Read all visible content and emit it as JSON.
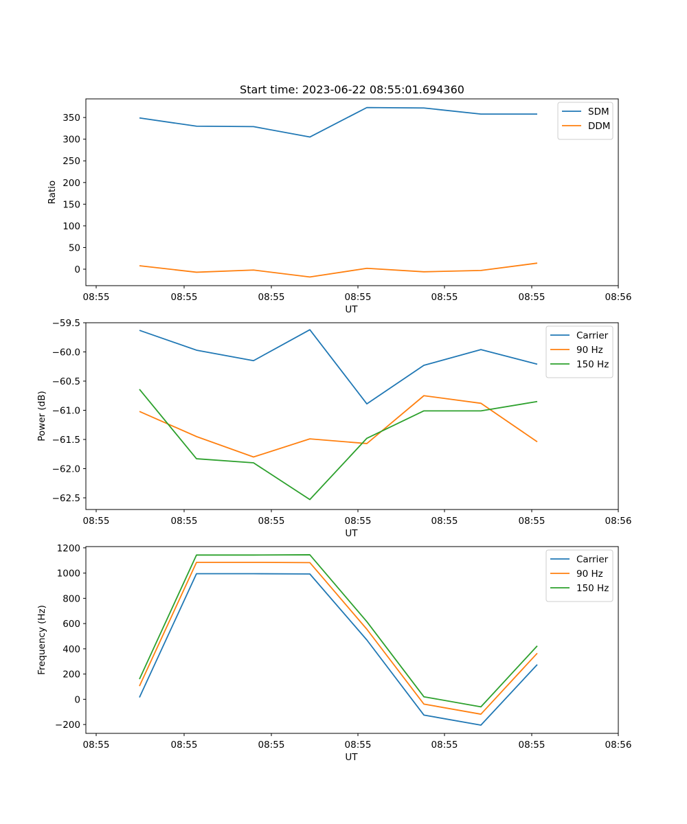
{
  "chart_data": [
    {
      "type": "line",
      "title": "Start time: 2023-06-22 08:55:01.694360",
      "xlabel": "UT",
      "ylabel": "Ratio",
      "x_tick_labels": [
        "08:55",
        "08:55",
        "08:55",
        "08:55",
        "08:55",
        "08:55",
        "08:56"
      ],
      "y_ticks": [
        0,
        50,
        100,
        150,
        200,
        250,
        300,
        350
      ],
      "y_tick_labels": [
        "0",
        "50",
        "100",
        "150",
        "200",
        "250",
        "300",
        "350"
      ],
      "ylim": [
        -38,
        393
      ],
      "legend": "top-right",
      "grid": false,
      "series": [
        {
          "name": "SDM",
          "color": "#1f77b4",
          "values": [
            349,
            330,
            329,
            305,
            373,
            372,
            358,
            358
          ]
        },
        {
          "name": "DDM",
          "color": "#ff7f0e",
          "values": [
            8,
            -7,
            -2,
            -18,
            2,
            -6,
            -3,
            14
          ]
        }
      ]
    },
    {
      "type": "line",
      "title": "",
      "xlabel": "UT",
      "ylabel": "Power (dB)",
      "x_tick_labels": [
        "08:55",
        "08:55",
        "08:55",
        "08:55",
        "08:55",
        "08:55",
        "08:56"
      ],
      "y_ticks": [
        -62.5,
        -62.0,
        -61.5,
        -61.0,
        -60.5,
        -60.0,
        -59.5
      ],
      "y_tick_labels": [
        "−62.5",
        "−62.0",
        "−61.5",
        "−61.0",
        "−60.5",
        "−60.0",
        "−59.5"
      ],
      "ylim": [
        -62.7,
        -59.5
      ],
      "legend": "top-right",
      "grid": false,
      "series": [
        {
          "name": "Carrier",
          "color": "#1f77b4",
          "values": [
            -59.63,
            -59.97,
            -60.15,
            -59.62,
            -60.89,
            -60.23,
            -59.96,
            -60.21
          ]
        },
        {
          "name": "90 Hz",
          "color": "#ff7f0e",
          "values": [
            -61.02,
            -61.45,
            -61.8,
            -61.49,
            -61.57,
            -60.75,
            -60.88,
            -61.54
          ]
        },
        {
          "name": "150 Hz",
          "color": "#2ca02c",
          "values": [
            -60.64,
            -61.83,
            -61.9,
            -62.53,
            -61.48,
            -61.01,
            -61.01,
            -60.85
          ]
        }
      ]
    },
    {
      "type": "line",
      "title": "",
      "xlabel": "UT",
      "ylabel": "Frequency (Hz)",
      "x_tick_labels": [
        "08:55",
        "08:55",
        "08:55",
        "08:55",
        "08:55",
        "08:55",
        "08:56"
      ],
      "y_ticks": [
        -200,
        0,
        200,
        400,
        600,
        800,
        1000,
        1200
      ],
      "y_tick_labels": [
        "−200",
        "0",
        "200",
        "400",
        "600",
        "800",
        "1000",
        "1200"
      ],
      "ylim": [
        -270,
        1210
      ],
      "legend": "top-right",
      "grid": false,
      "series": [
        {
          "name": "Carrier",
          "color": "#1f77b4",
          "values": [
            15,
            995,
            995,
            993,
            470,
            -125,
            -205,
            275
          ]
        },
        {
          "name": "90 Hz",
          "color": "#ff7f0e",
          "values": [
            105,
            1085,
            1085,
            1083,
            555,
            -38,
            -118,
            365
          ]
        },
        {
          "name": "150 Hz",
          "color": "#2ca02c",
          "values": [
            160,
            1143,
            1143,
            1145,
            615,
            20,
            -60,
            423
          ]
        }
      ]
    }
  ]
}
